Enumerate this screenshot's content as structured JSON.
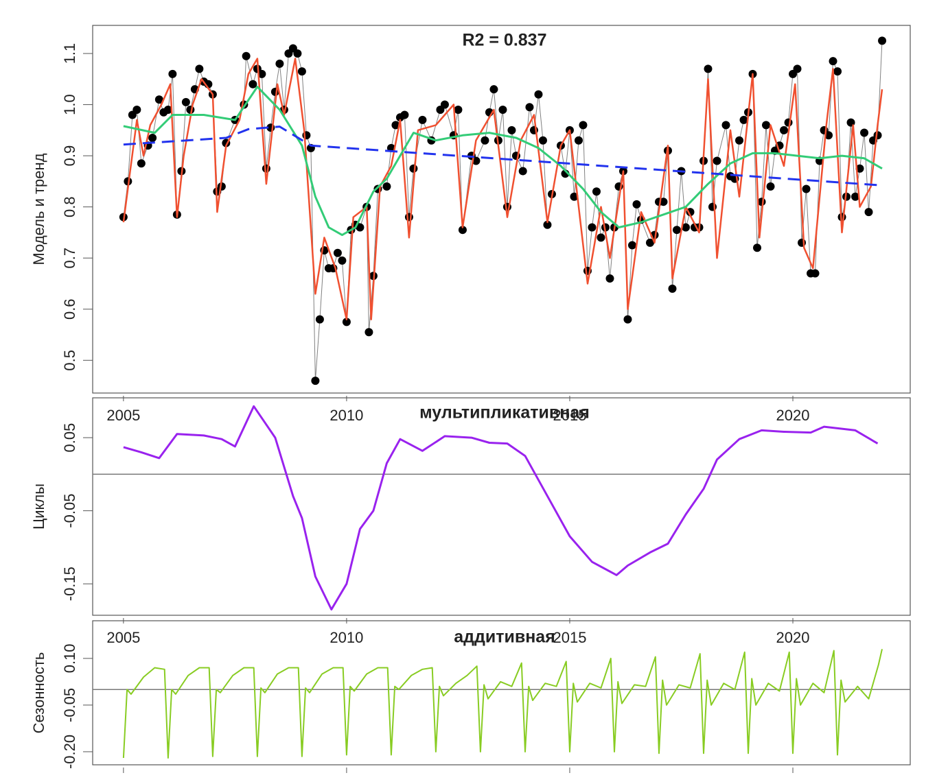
{
  "chart_data": [
    {
      "type": "line",
      "title": "R2 = 0.837",
      "ylabel": "Модель и тренд",
      "xlim": [
        2004.31,
        2022.63
      ],
      "ylim": [
        0.436,
        1.155
      ],
      "xticks": [
        2005,
        2010,
        2015,
        2020
      ],
      "yticks": [
        0.5,
        0.6,
        0.7,
        0.8,
        0.9,
        {
          "value": 1,
          "label": "1.0"
        },
        1.1
      ],
      "series": [
        {
          "color": "#000000",
          "line_color": "#808080",
          "markers": true,
          "width": 1,
          "x": [
            2005.0,
            2005.1,
            2005.2,
            2005.3,
            2005.4,
            2005.55,
            2005.65,
            2005.8,
            2005.9,
            2006.0,
            2006.1,
            2006.2,
            2006.3,
            2006.4,
            2006.5,
            2006.6,
            2006.7,
            2006.8,
            2006.9,
            2007.0,
            2007.1,
            2007.2,
            2007.3,
            2007.5,
            2007.7,
            2007.75,
            2007.9,
            2008.0,
            2008.1,
            2008.2,
            2008.3,
            2008.4,
            2008.5,
            2008.6,
            2008.7,
            2008.8,
            2008.9,
            2009.0,
            2009.1,
            2009.2,
            2009.3,
            2009.4,
            2009.5,
            2009.6,
            2009.7,
            2009.8,
            2009.9,
            2010.0,
            2010.1,
            2010.2,
            2010.3,
            2010.45,
            2010.5,
            2010.6,
            2010.7,
            2010.9,
            2011.0,
            2011.1,
            2011.2,
            2011.3,
            2011.4,
            2011.5,
            2011.7,
            2011.9,
            2012.1,
            2012.2,
            2012.4,
            2012.5,
            2012.6,
            2012.8,
            2012.9,
            2013.1,
            2013.2,
            2013.3,
            2013.4,
            2013.5,
            2013.6,
            2013.7,
            2013.8,
            2013.95,
            2014.1,
            2014.2,
            2014.3,
            2014.4,
            2014.5,
            2014.6,
            2014.8,
            2014.9,
            2015.0,
            2015.1,
            2015.2,
            2015.3,
            2015.4,
            2015.5,
            2015.6,
            2015.7,
            2015.8,
            2015.9,
            2016.0,
            2016.1,
            2016.2,
            2016.3,
            2016.4,
            2016.5,
            2016.6,
            2016.8,
            2016.9,
            2017.0,
            2017.1,
            2017.2,
            2017.3,
            2017.4,
            2017.5,
            2017.6,
            2017.7,
            2017.8,
            2017.9,
            2018.0,
            2018.1,
            2018.2,
            2018.3,
            2018.5,
            2018.6,
            2018.7,
            2018.8,
            2018.9,
            2019.0,
            2019.1,
            2019.2,
            2019.3,
            2019.4,
            2019.5,
            2019.6,
            2019.7,
            2019.8,
            2019.9,
            2020.0,
            2020.1,
            2020.2,
            2020.3,
            2020.4,
            2020.5,
            2020.6,
            2020.7,
            2020.8,
            2020.9,
            2021.0,
            2021.1,
            2021.2,
            2021.3,
            2021.4,
            2021.5,
            2021.6,
            2021.7,
            2021.8,
            2021.9,
            2022.0
          ],
          "values": [
            0.78,
            0.85,
            0.98,
            0.99,
            0.885,
            0.92,
            0.935,
            1.01,
            0.985,
            0.99,
            1.06,
            0.785,
            0.87,
            1.005,
            0.99,
            1.03,
            1.07,
            1.045,
            1.04,
            1.02,
            0.83,
            0.84,
            0.925,
            0.97,
            1.0,
            1.095,
            1.04,
            1.07,
            1.06,
            0.875,
            0.955,
            1.025,
            1.08,
            0.99,
            1.1,
            1.11,
            1.1,
            1.065,
            0.94,
            0.915,
            0.46,
            0.58,
            0.715,
            0.68,
            0.68,
            0.71,
            0.695,
            0.575,
            0.755,
            0.765,
            0.76,
            0.8,
            0.555,
            0.665,
            0.835,
            0.84,
            0.915,
            0.96,
            0.975,
            0.98,
            0.78,
            0.875,
            0.97,
            0.93,
            0.99,
            1.0,
            0.94,
            0.99,
            0.755,
            0.9,
            0.89,
            0.93,
            0.985,
            1.03,
            0.93,
            0.99,
            0.8,
            0.95,
            0.9,
            0.87,
            0.995,
            0.95,
            1.02,
            0.93,
            0.765,
            0.825,
            0.92,
            0.865,
            0.95,
            0.82,
            0.93,
            0.96,
            0.675,
            0.76,
            0.83,
            0.74,
            0.76,
            0.66,
            0.76,
            0.84,
            0.87,
            0.58,
            0.725,
            0.805,
            0.775,
            0.73,
            0.745,
            0.81,
            0.81,
            0.91,
            0.64,
            0.755,
            0.87,
            0.76,
            0.79,
            0.76,
            0.76,
            0.89,
            1.07,
            0.8,
            0.89,
            0.96,
            0.86,
            0.855,
            0.93,
            0.97,
            0.985,
            1.06,
            0.72,
            0.81,
            0.96,
            0.84,
            0.91,
            0.92,
            0.95,
            0.965,
            1.06,
            1.07,
            0.73,
            0.835,
            0.67,
            0.67,
            0.89,
            0.95,
            0.94,
            1.085,
            1.065,
            0.78,
            0.82,
            0.965,
            0.82,
            0.875,
            0.945,
            0.79,
            0.93,
            0.94,
            1.125
          ]
        },
        {
          "color": "#f05030",
          "width": 2.5,
          "x": [
            2005.0,
            2005.15,
            2005.3,
            2005.45,
            2005.6,
            2005.85,
            2006.05,
            2006.2,
            2006.35,
            2006.55,
            2006.75,
            2007.0,
            2007.1,
            2007.3,
            2007.6,
            2007.8,
            2008.0,
            2008.2,
            2008.45,
            2008.6,
            2008.85,
            2009.05,
            2009.3,
            2009.5,
            2009.75,
            2010.0,
            2010.15,
            2010.45,
            2010.55,
            2010.75,
            2011.0,
            2011.2,
            2011.4,
            2011.6,
            2012.0,
            2012.4,
            2012.6,
            2012.9,
            2013.3,
            2013.6,
            2013.9,
            2014.2,
            2014.5,
            2014.8,
            2015.0,
            2015.4,
            2015.7,
            2015.9,
            2016.2,
            2016.3,
            2016.6,
            2016.9,
            2017.2,
            2017.3,
            2017.6,
            2017.9,
            2018.1,
            2018.3,
            2018.6,
            2018.8,
            2019.1,
            2019.25,
            2019.5,
            2019.8,
            2020.05,
            2020.25,
            2020.45,
            2020.75,
            2020.9,
            2021.1,
            2021.35,
            2021.5,
            2021.75,
            2021.9,
            2022.0
          ],
          "values": [
            0.77,
            0.87,
            0.97,
            0.9,
            0.96,
            1.0,
            1.04,
            0.78,
            0.9,
            1.0,
            1.05,
            1.02,
            0.79,
            0.92,
            0.97,
            1.06,
            1.09,
            0.845,
            1.04,
            0.98,
            1.09,
            0.95,
            0.63,
            0.74,
            0.68,
            0.58,
            0.78,
            0.8,
            0.58,
            0.84,
            0.88,
            0.97,
            0.74,
            0.95,
            0.96,
            1.0,
            0.76,
            0.93,
            0.99,
            0.78,
            0.93,
            0.98,
            0.77,
            0.92,
            0.95,
            0.65,
            0.8,
            0.7,
            0.87,
            0.6,
            0.79,
            0.73,
            0.92,
            0.66,
            0.8,
            0.75,
            1.05,
            0.7,
            0.95,
            0.82,
            1.06,
            0.74,
            0.96,
            0.88,
            1.04,
            0.72,
            0.68,
            0.96,
            1.07,
            0.75,
            0.96,
            0.8,
            0.84,
            0.96,
            1.03
          ]
        },
        {
          "color": "#33cc77",
          "width": 3,
          "x": [
            2005,
            2005.7,
            2006.1,
            2006.8,
            2007.5,
            2008.0,
            2008.5,
            2009.0,
            2009.3,
            2009.6,
            2009.9,
            2010.2,
            2010.6,
            2010.9,
            2011.2,
            2011.5,
            2012.0,
            2012.6,
            2013.2,
            2013.8,
            2014.3,
            2014.8,
            2015.3,
            2015.7,
            2016.1,
            2016.6,
            2017.1,
            2017.6,
            2018.1,
            2018.6,
            2019.1,
            2019.6,
            2020.1,
            2020.6,
            2021.1,
            2021.6,
            2022.0
          ],
          "values": [
            0.958,
            0.945,
            0.98,
            0.98,
            0.97,
            1.035,
            0.99,
            0.92,
            0.82,
            0.76,
            0.745,
            0.76,
            0.83,
            0.855,
            0.9,
            0.945,
            0.93,
            0.94,
            0.945,
            0.935,
            0.915,
            0.88,
            0.835,
            0.79,
            0.76,
            0.77,
            0.785,
            0.8,
            0.845,
            0.885,
            0.905,
            0.905,
            0.9,
            0.895,
            0.9,
            0.895,
            0.875
          ]
        },
        {
          "color": "#2233ee",
          "width": 3,
          "dashed": true,
          "x": [
            2005,
            2007.3,
            2007.8,
            2008.5,
            2009.2,
            2022
          ],
          "values": [
            0.922,
            0.935,
            0.952,
            0.957,
            0.92,
            0.842
          ]
        }
      ]
    },
    {
      "type": "line",
      "title": "мультипликативная",
      "ylabel": "Циклы",
      "xlim": [
        2004.31,
        2022.63
      ],
      "ylim": [
        -0.193,
        0.1045
      ],
      "hline": 0,
      "xticks": [
        2005,
        2010,
        2015,
        2020
      ],
      "yticks": [
        -0.15,
        -0.05,
        0.05
      ],
      "series": [
        {
          "color": "#9922ee",
          "width": 3,
          "x": [
            2005.0,
            2005.4,
            2005.8,
            2006.2,
            2006.8,
            2007.2,
            2007.5,
            2007.92,
            2008.4,
            2008.8,
            2009.0,
            2009.3,
            2009.66,
            2010.0,
            2010.3,
            2010.6,
            2010.9,
            2011.2,
            2011.7,
            2012.2,
            2012.8,
            2013.2,
            2013.6,
            2014.0,
            2014.5,
            2015.0,
            2015.5,
            2016.05,
            2016.3,
            2016.8,
            2017.2,
            2017.6,
            2018.0,
            2018.3,
            2018.8,
            2019.3,
            2019.8,
            2020.4,
            2020.7,
            2021.4,
            2021.9
          ],
          "values": [
            0.037,
            0.03,
            0.022,
            0.055,
            0.053,
            0.048,
            0.038,
            0.093,
            0.05,
            -0.03,
            -0.06,
            -0.14,
            -0.185,
            -0.15,
            -0.075,
            -0.05,
            0.015,
            0.048,
            0.032,
            0.052,
            0.05,
            0.043,
            0.042,
            0.025,
            -0.03,
            -0.085,
            -0.12,
            -0.138,
            -0.125,
            -0.107,
            -0.095,
            -0.055,
            -0.02,
            0.02,
            0.048,
            0.06,
            0.058,
            0.057,
            0.065,
            0.06,
            0.042
          ]
        }
      ]
    },
    {
      "type": "line",
      "title": "аддитивная",
      "ylabel": "Сезонность",
      "xlim": [
        2004.31,
        2022.63
      ],
      "ylim": [
        -0.242,
        0.221
      ],
      "hline": 0,
      "xticks": [
        2005,
        2010,
        2015,
        2020
      ],
      "yticks": [
        {
          "value": -0.2,
          "label": "-0.20"
        },
        -0.05,
        {
          "value": 0.1,
          "label": "0.10"
        }
      ],
      "series": [
        {
          "color": "#88cc22",
          "width": 2,
          "x": [
            2005,
            2005.08,
            2005.17,
            2005.45,
            2005.7,
            2005.92,
            2006,
            2006.08,
            2006.17,
            2006.45,
            2006.7,
            2006.92,
            2007,
            2007.08,
            2007.17,
            2007.45,
            2007.7,
            2007.92,
            2008,
            2008.08,
            2008.17,
            2008.45,
            2008.7,
            2008.92,
            2009,
            2009.08,
            2009.17,
            2009.45,
            2009.7,
            2009.92,
            2010,
            2010.08,
            2010.17,
            2010.45,
            2010.7,
            2010.92,
            2011,
            2011.08,
            2011.17,
            2011.45,
            2011.7,
            2011.92,
            2012,
            2012.08,
            2012.17,
            2012.45,
            2012.7,
            2012.92,
            2013,
            2013.08,
            2013.17,
            2013.45,
            2013.7,
            2013.92,
            2014,
            2014.08,
            2014.17,
            2014.45,
            2014.7,
            2014.92,
            2015,
            2015.08,
            2015.17,
            2015.45,
            2015.7,
            2015.92,
            2016,
            2016.08,
            2016.17,
            2016.45,
            2016.7,
            2016.92,
            2017,
            2017.08,
            2017.17,
            2017.45,
            2017.7,
            2017.92,
            2018,
            2018.08,
            2018.17,
            2018.45,
            2018.7,
            2018.92,
            2019,
            2019.08,
            2019.17,
            2019.45,
            2019.7,
            2019.92,
            2020,
            2020.08,
            2020.17,
            2020.45,
            2020.7,
            2020.92,
            2021,
            2021.08,
            2021.17,
            2021.45,
            2021.7,
            2021.92,
            2022
          ],
          "values": [
            -0.22,
            0,
            -0.015,
            0.04,
            0.07,
            0.065,
            -0.22,
            0,
            -0.015,
            0.045,
            0.07,
            0.07,
            -0.215,
            0,
            -0.01,
            0.045,
            0.07,
            0.07,
            -0.215,
            0.005,
            -0.01,
            0.05,
            0.07,
            0.07,
            -0.215,
            0.005,
            -0.01,
            0.05,
            0.07,
            0.07,
            -0.21,
            0.01,
            -0.005,
            0.05,
            0.07,
            0.07,
            -0.21,
            0.01,
            0,
            0.045,
            0.065,
            0.07,
            -0.2,
            0.01,
            -0.02,
            0.02,
            0.045,
            0.075,
            -0.2,
            0.015,
            -0.03,
            0.025,
            0.01,
            0.085,
            -0.2,
            0.01,
            -0.035,
            0.02,
            0.01,
            0.09,
            -0.2,
            0.02,
            -0.04,
            0.02,
            0.005,
            0.1,
            -0.2,
            0.025,
            -0.045,
            0.015,
            0.01,
            0.105,
            -0.205,
            0.03,
            -0.05,
            0.015,
            0.005,
            0.115,
            -0.205,
            0.03,
            -0.05,
            0.02,
            0,
            0.12,
            -0.205,
            0.035,
            -0.05,
            0.02,
            -0.005,
            0.12,
            -0.205,
            0.035,
            -0.05,
            0.02,
            -0.01,
            0.125,
            -0.21,
            0.03,
            -0.04,
            0.01,
            -0.03,
            0.08,
            0.13
          ]
        }
      ]
    }
  ]
}
